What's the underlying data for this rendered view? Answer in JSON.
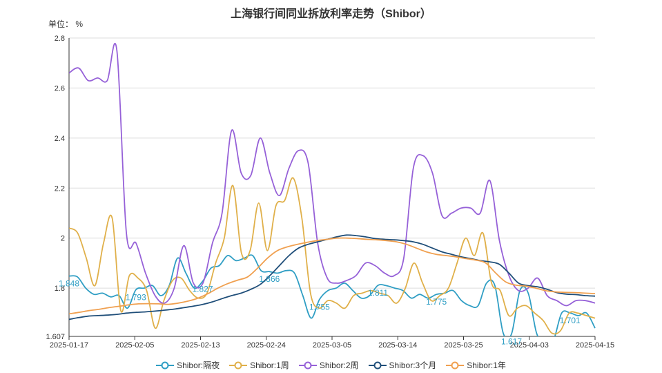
{
  "chart_data": {
    "type": "line",
    "title": "上海银行间同业拆放利率走势（Shibor）",
    "unit": "单位：  %",
    "xlabel": "",
    "ylabel": "",
    "ylim": [
      1.607,
      2.8
    ],
    "y_ticks": [
      "1.607",
      "1.8",
      "2",
      "2.2",
      "2.4",
      "2.6",
      "2.8"
    ],
    "y_tick_values": [
      1.607,
      1.8,
      2.0,
      2.2,
      2.4,
      2.6,
      2.8
    ],
    "x_ticks": [
      "2025-01-17",
      "2025-02-05",
      "2025-02-13",
      "2025-02-24",
      "2025-03-05",
      "2025-03-14",
      "2025-03-25",
      "2025-04-03",
      "2025-04-15"
    ],
    "x_tick_index": [
      0,
      8,
      16,
      24,
      32,
      40,
      48,
      56,
      64
    ],
    "grid": true,
    "legend_position": "bottom",
    "series": [
      {
        "name": "Shibor:隔夜",
        "color": "#2f9ec4",
        "values": [
          1.848,
          1.845,
          1.8,
          1.775,
          1.78,
          1.765,
          1.77,
          1.72,
          1.793,
          1.8,
          1.81,
          1.77,
          1.81,
          1.92,
          1.86,
          1.8,
          1.827,
          1.88,
          1.89,
          1.93,
          1.91,
          1.92,
          1.93,
          1.87,
          1.866,
          1.86,
          1.87,
          1.86,
          1.77,
          1.68,
          1.755,
          1.79,
          1.8,
          1.82,
          1.79,
          1.76,
          1.77,
          1.811,
          1.81,
          1.8,
          1.79,
          1.76,
          1.775,
          1.76,
          1.775,
          1.78,
          1.79,
          1.75,
          1.73,
          1.73,
          1.82,
          1.81,
          1.62,
          1.617,
          1.79,
          1.78,
          1.62,
          1.58,
          1.59,
          1.7,
          1.701,
          1.69,
          1.7,
          1.64
        ]
      },
      {
        "name": "Shibor:1周",
        "color": "#e0b04a",
        "values": [
          2.04,
          2.02,
          1.92,
          1.81,
          1.98,
          2.08,
          1.71,
          1.85,
          1.84,
          1.79,
          1.64,
          1.75,
          1.83,
          1.84,
          1.79,
          1.76,
          1.78,
          1.9,
          2.0,
          2.21,
          1.94,
          1.95,
          2.14,
          1.95,
          2.13,
          2.15,
          2.24,
          2.08,
          1.78,
          1.72,
          1.75,
          1.74,
          1.72,
          1.77,
          1.78,
          1.79,
          1.78,
          1.77,
          1.74,
          1.8,
          1.9,
          1.82,
          1.75,
          1.77,
          1.8,
          1.9,
          2.0,
          1.93,
          2.02,
          1.82,
          1.79,
          1.69,
          1.72,
          1.73,
          1.7,
          1.67,
          1.62,
          1.63,
          1.7,
          1.7,
          1.69,
          1.68
        ]
      },
      {
        "name": "Shibor:2周",
        "color": "#9661d8",
        "values": [
          2.66,
          2.68,
          2.63,
          2.64,
          2.63,
          2.75,
          2.02,
          1.98,
          1.86,
          1.77,
          1.74,
          1.8,
          1.97,
          1.82,
          1.82,
          1.98,
          2.1,
          2.43,
          2.26,
          2.25,
          2.4,
          2.26,
          2.17,
          2.28,
          2.35,
          2.3,
          1.98,
          1.84,
          1.82,
          1.83,
          1.85,
          1.9,
          1.89,
          1.86,
          1.85,
          1.92,
          2.28,
          2.33,
          2.26,
          2.09,
          2.1,
          2.12,
          2.12,
          2.1,
          2.23,
          1.99,
          1.85,
          1.79,
          1.8,
          1.84,
          1.77,
          1.75,
          1.73,
          1.75,
          1.75,
          1.74
        ]
      },
      {
        "name": "Shibor:3个月",
        "color": "#1f4e79",
        "values": [
          1.675,
          1.682,
          1.688,
          1.69,
          1.692,
          1.695,
          1.7,
          1.703,
          1.705,
          1.708,
          1.712,
          1.716,
          1.722,
          1.728,
          1.735,
          1.745,
          1.758,
          1.77,
          1.78,
          1.795,
          1.815,
          1.85,
          1.89,
          1.93,
          1.96,
          1.975,
          1.985,
          1.995,
          2.005,
          2.012,
          2.01,
          2.005,
          1.998,
          1.995,
          1.993,
          1.99,
          1.985,
          1.975,
          1.96,
          1.945,
          1.935,
          1.925,
          1.918,
          1.91,
          1.905,
          1.895,
          1.86,
          1.82,
          1.81,
          1.805,
          1.795,
          1.782,
          1.776,
          1.774,
          1.77,
          1.768
        ]
      },
      {
        "name": "Shibor:1年",
        "color": "#f0a050",
        "values": [
          1.697,
          1.703,
          1.71,
          1.715,
          1.722,
          1.727,
          1.733,
          1.737,
          1.738,
          1.737,
          1.735,
          1.74,
          1.748,
          1.76,
          1.778,
          1.8,
          1.818,
          1.832,
          1.845,
          1.88,
          1.92,
          1.95,
          1.965,
          1.975,
          1.983,
          1.99,
          1.995,
          2.0,
          2.0,
          1.998,
          1.995,
          1.993,
          1.99,
          1.985,
          1.975,
          1.96,
          1.945,
          1.935,
          1.93,
          1.925,
          1.918,
          1.912,
          1.9,
          1.86,
          1.825,
          1.812,
          1.808,
          1.8,
          1.79,
          1.785,
          1.783,
          1.782,
          1.78,
          1.778
        ]
      }
    ],
    "data_labels": [
      {
        "series": 0,
        "index": 0,
        "text": "1.848"
      },
      {
        "series": 0,
        "index": 8,
        "text": "1.793"
      },
      {
        "series": 0,
        "index": 16,
        "text": "1.827"
      },
      {
        "series": 0,
        "index": 24,
        "text": "1.866"
      },
      {
        "series": 0,
        "index": 30,
        "text": "1.755"
      },
      {
        "series": 0,
        "index": 37,
        "text": "1.811"
      },
      {
        "series": 0,
        "index": 44,
        "text": "1.775"
      },
      {
        "series": 0,
        "index": 53,
        "text": "1.617"
      },
      {
        "series": 0,
        "index": 60,
        "text": "1.701"
      }
    ]
  }
}
